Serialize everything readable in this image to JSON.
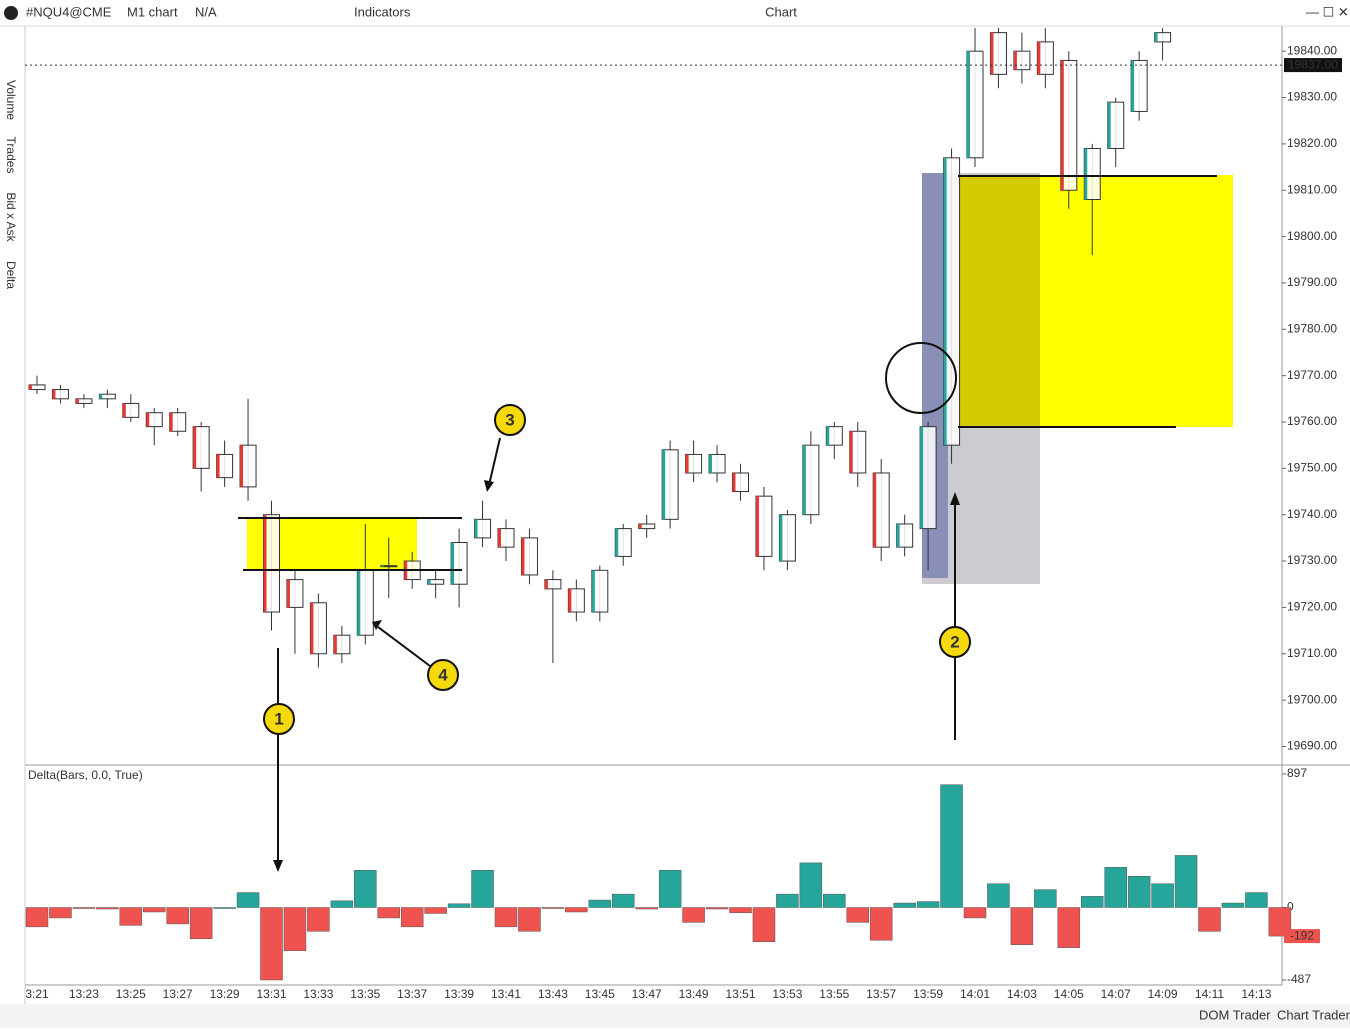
{
  "toolbar": {
    "symbol": "#NQU4@CME",
    "timeframe": "M1 chart",
    "account": "N/A",
    "indicators": "Indicators",
    "title": "Chart"
  },
  "side_tabs": [
    "Volume",
    "Trades",
    "Bid x Ask",
    "Delta"
  ],
  "callouts": [
    "1",
    "2",
    "3",
    "4"
  ],
  "bottom_bar": {
    "dom_trader": "DOM Trader",
    "chart_trader": "Chart Trader"
  },
  "chart_data": [
    {
      "type": "candlestick",
      "categories": [
        "3:21",
        null,
        "13:23",
        null,
        "13:25",
        null,
        "13:27",
        null,
        "13:29",
        null,
        "13:31",
        null,
        "13:33",
        null,
        "13:35",
        null,
        "13:37",
        null,
        "13:39",
        null,
        "13:41",
        null,
        "13:43",
        null,
        "13:45",
        null,
        "13:47",
        null,
        "13:49",
        null,
        "13:51",
        null,
        "13:53",
        null,
        "13:55",
        null,
        "13:57",
        null,
        "13:59",
        null,
        "14:01",
        null,
        "14:03",
        null,
        "14:05",
        null,
        "14:07",
        null,
        "14:09",
        null,
        "14:11",
        null,
        "14:13",
        null
      ],
      "open": [
        19768,
        19767,
        19765,
        19765,
        19764,
        19762,
        19762,
        19759,
        19753,
        19755,
        19740,
        19726,
        19721,
        19714,
        19714,
        19729,
        19730,
        19725,
        19725,
        19735,
        19737,
        19735,
        19726,
        19724,
        19719,
        19731,
        19738,
        19739,
        19753,
        19749,
        19749,
        19744,
        19730,
        19740,
        19755,
        19758,
        19749,
        19733,
        19737,
        19755,
        19817,
        19844,
        19840,
        19842,
        19838,
        19808,
        19819,
        19827,
        19842,
        null,
        null,
        null,
        null,
        null
      ],
      "high": [
        19770,
        19768,
        19766,
        19767,
        19766,
        19763,
        19763,
        19760,
        19756,
        19765,
        19743,
        19728,
        19723,
        19716,
        19738,
        19735,
        19732,
        19728,
        19737,
        19743,
        19739,
        19737,
        19728,
        19726,
        19729,
        19738,
        19740,
        19756,
        19756,
        19755,
        19751,
        19746,
        19741,
        19758,
        19760,
        19760,
        19752,
        19740,
        19760,
        19819,
        19845,
        19845,
        19844,
        19845,
        19840,
        19820,
        19830,
        19840,
        19845,
        null,
        null,
        null,
        null,
        null
      ],
      "low": [
        19766,
        19764,
        19763,
        19763,
        19760,
        19755,
        19757,
        19745,
        19746,
        19743,
        19715,
        19710,
        19707,
        19708,
        19712,
        19722,
        19724,
        19722,
        19720,
        19733,
        19730,
        19725,
        19708,
        19717,
        19717,
        19729,
        19735,
        19737,
        19747,
        19747,
        19743,
        19728,
        19728,
        19738,
        19752,
        19746,
        19730,
        19731,
        19728,
        19751,
        19815,
        19832,
        19833,
        19832,
        19806,
        19796,
        19815,
        19825,
        19838,
        null,
        null,
        null,
        null,
        null
      ],
      "close": [
        19767,
        19765,
        19764,
        19766,
        19761,
        19759,
        19758,
        19750,
        19748,
        19746,
        19719,
        19720,
        19710,
        19710,
        19728,
        19729,
        19726,
        19726,
        19734,
        19739,
        19733,
        19727,
        19724,
        19719,
        19728,
        19737,
        19737,
        19754,
        19749,
        19753,
        19745,
        19731,
        19740,
        19755,
        19759,
        19749,
        19733,
        19738,
        19759,
        19817,
        19840,
        19835,
        19836,
        19835,
        19810,
        19819,
        19829,
        19838,
        19844,
        null,
        null,
        null,
        null,
        null
      ],
      "ylim": [
        19686,
        19845
      ],
      "yticks": [
        {
          "value": 19690,
          "label": "19690.00"
        },
        {
          "value": 19700,
          "label": "19700.00"
        },
        {
          "value": 19710,
          "label": "19710.00"
        },
        {
          "value": 19720,
          "label": "19720.00"
        },
        {
          "value": 19730,
          "label": "19730.00"
        },
        {
          "value": 19740,
          "label": "19740.00"
        },
        {
          "value": 19750,
          "label": "19750.00"
        },
        {
          "value": 19760,
          "label": "19760.00"
        },
        {
          "value": 19770,
          "label": "19770.00"
        },
        {
          "value": 19780,
          "label": "19780.00"
        },
        {
          "value": 19790,
          "label": "19790.00"
        },
        {
          "value": 19800,
          "label": "19800.00"
        },
        {
          "value": 19810,
          "label": "19810.00"
        },
        {
          "value": 19820,
          "label": "19820.00"
        },
        {
          "value": 19830,
          "label": "19830.00"
        },
        {
          "value": 19840,
          "label": "19840.00"
        }
      ],
      "last_price": {
        "value": 19837,
        "label": "19837.00"
      }
    },
    {
      "type": "bar",
      "title": "Delta(Bars, 0.0, True)",
      "values": [
        -130,
        -70,
        -5,
        -10,
        -120,
        -30,
        -110,
        -210,
        0,
        100,
        -487,
        -290,
        -160,
        45,
        250,
        -70,
        -130,
        -40,
        25,
        250,
        -130,
        -160,
        -5,
        -30,
        50,
        90,
        -10,
        250,
        -100,
        -10,
        -35,
        -230,
        90,
        300,
        90,
        -100,
        -220,
        30,
        40,
        825,
        -70,
        160,
        -250,
        120,
        -270,
        75,
        270,
        210,
        160,
        350,
        -160,
        30,
        100,
        -192
      ],
      "colors": {
        "positive": "#26a69a",
        "negative": "#ef5350"
      },
      "ylim": [
        -487,
        897
      ],
      "yticks": [
        -487,
        0,
        897
      ],
      "last_value": -192
    }
  ]
}
